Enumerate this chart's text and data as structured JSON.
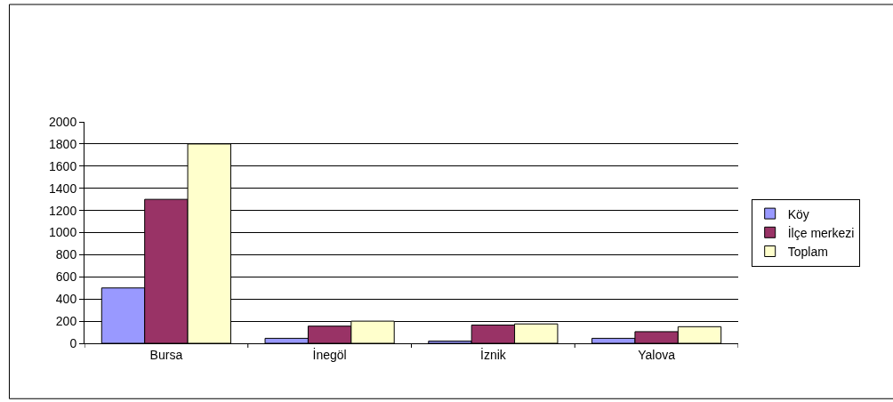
{
  "chart_data": {
    "type": "bar",
    "categories": [
      "Bursa",
      "İnegöl",
      "İznik",
      "Yalova"
    ],
    "series": [
      {
        "name": "Köy",
        "color": "#9999ff",
        "values": [
          500,
          45,
          20,
          45
        ]
      },
      {
        "name": "İlçe merkezi",
        "color": "#993366",
        "values": [
          1300,
          155,
          165,
          105
        ]
      },
      {
        "name": "Toplam",
        "color": "#ffffcc",
        "values": [
          1800,
          200,
          175,
          150
        ]
      }
    ],
    "ylim": [
      0,
      2000
    ],
    "yticks": [
      0,
      200,
      400,
      600,
      800,
      1000,
      1200,
      1400,
      1600,
      1800,
      2000
    ],
    "grid": "y",
    "legend": "right"
  }
}
